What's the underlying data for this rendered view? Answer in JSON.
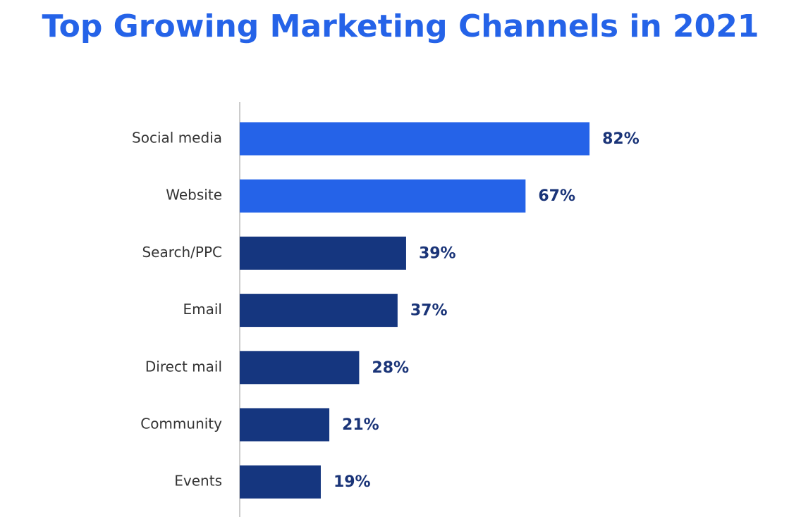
{
  "chart_data": {
    "type": "bar",
    "orientation": "horizontal",
    "title": "Top Growing Marketing Channels in 2021",
    "categories": [
      "Social media",
      "Website",
      "Search/PPC",
      "Email",
      "Direct mail",
      "Community",
      "Events"
    ],
    "values": [
      82,
      67,
      39,
      37,
      28,
      21,
      19
    ],
    "value_labels": [
      "82%",
      "67%",
      "39%",
      "37%",
      "28%",
      "21%",
      "19%"
    ],
    "colors": [
      "#2563e8",
      "#2563e8",
      "#15367f",
      "#15367f",
      "#15367f",
      "#15367f",
      "#15367f"
    ]
  }
}
